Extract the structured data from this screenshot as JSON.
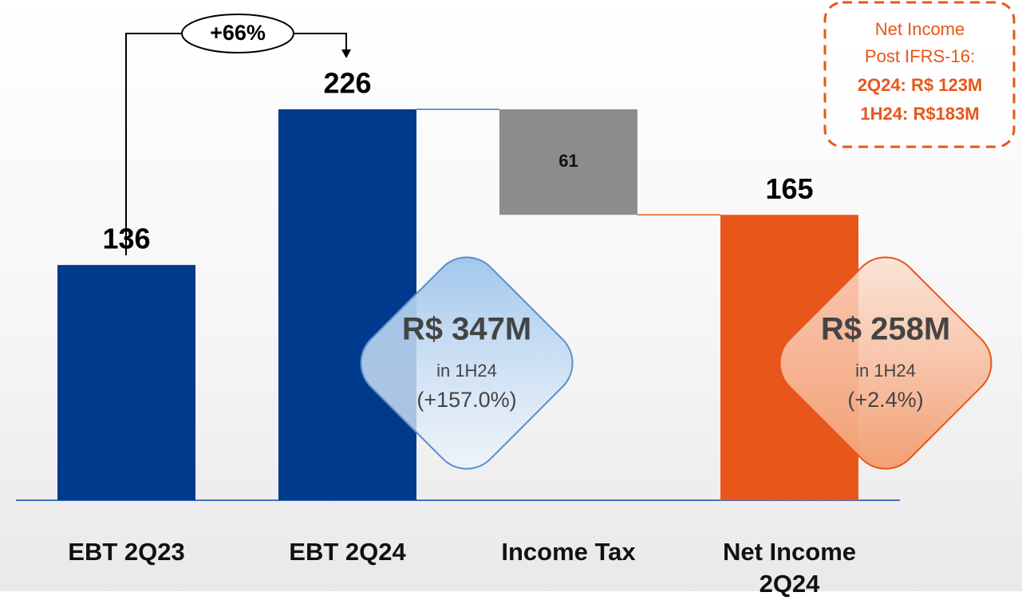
{
  "chart_data": {
    "type": "waterfall",
    "categories": [
      "EBT 2Q23",
      "EBT 2Q24",
      "Income Tax",
      "Net Income 2Q24"
    ],
    "values": [
      136,
      226,
      61,
      165
    ],
    "measures": [
      "absolute",
      "absolute",
      "decrease",
      "total"
    ],
    "colors": [
      "#003a8c",
      "#003a8c",
      "#8c8c8c",
      "#e8561a"
    ],
    "growth_label": "+66%",
    "callout": [
      "Net Income",
      "Post IFRS-16:",
      "2Q24: R$ 123M",
      "1H24: R$183M"
    ],
    "badges": [
      {
        "value": "R$ 347M",
        "period": "in 1H24",
        "change": "(+157.0%)"
      },
      {
        "value": "R$ 258M",
        "period": "in 1H24",
        "change": "(+2.4%)"
      }
    ]
  }
}
